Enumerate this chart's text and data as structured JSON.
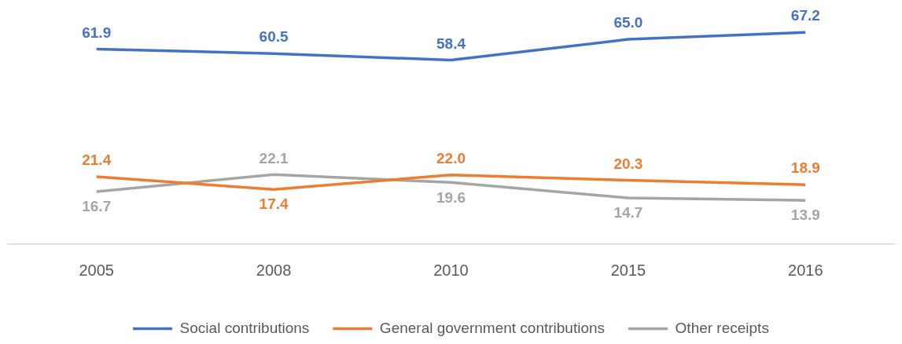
{
  "chart_data": {
    "type": "line",
    "categories": [
      "2005",
      "2008",
      "2010",
      "2015",
      "2016"
    ],
    "series": [
      {
        "name": "Social contributions",
        "color": "#4472c4",
        "values": [
          61.9,
          60.5,
          58.4,
          65.0,
          67.2
        ],
        "value_labels": [
          "61.9",
          "60.5",
          "58.4",
          "65.0",
          "67.2"
        ]
      },
      {
        "name": "General government contributions",
        "color": "#ed7d31",
        "values": [
          21.4,
          17.4,
          22.0,
          20.3,
          18.9
        ],
        "value_labels": [
          "21.4",
          "17.4",
          "22.0",
          "20.3",
          "18.9"
        ]
      },
      {
        "name": "Other receipts",
        "color": "#a5a5a5",
        "values": [
          16.7,
          22.1,
          19.6,
          14.7,
          13.9
        ],
        "value_labels": [
          "16.7",
          "22.1",
          "19.6",
          "14.7",
          "13.9"
        ]
      }
    ],
    "data_labels": true,
    "legend": "bottom",
    "grid": false,
    "marker": "none",
    "line_style": "solid",
    "tick_labels": "x"
  }
}
